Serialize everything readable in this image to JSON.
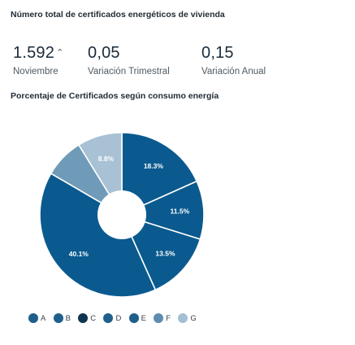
{
  "header": {
    "title": "Número total de certificados energéticos de vivienda"
  },
  "kpis": [
    {
      "value": "1.592",
      "arrow": "⌃",
      "label": "Noviembre"
    },
    {
      "value": "0,05",
      "label": "Variación Trimestral"
    },
    {
      "value": "0,15",
      "label": "Variación Anual"
    }
  ],
  "section": {
    "title": "Porcentaje de Certificados según consumo energía"
  },
  "chart_data": {
    "type": "pie",
    "donut": true,
    "title": "",
    "slices": [
      {
        "name": "A",
        "value": 18.3,
        "label": "18.3%",
        "color": "#0a5a8f"
      },
      {
        "name": "B",
        "value": 11.5,
        "label": "11.5%",
        "color": "#0a5a8f"
      },
      {
        "name": "C",
        "value": 13.5,
        "label": "13.5%",
        "color": "#0a5a8f"
      },
      {
        "name": "D",
        "value": 40.1,
        "label": "40.1%",
        "color": "#0a5a8f"
      },
      {
        "name": "E",
        "value": 7.8,
        "label": "",
        "color": "#6f9ab8"
      },
      {
        "name": "F",
        "value": 8.8,
        "label": "8.8%",
        "color": "#a9c1d4"
      }
    ],
    "legend": {
      "placement": "bottom",
      "items": [
        {
          "label": "A",
          "color": "#1f5f8b"
        },
        {
          "label": "B",
          "color": "#1f5f8b"
        },
        {
          "label": "C",
          "color": "#0f3550"
        },
        {
          "label": "D",
          "color": "#1f5f8b"
        },
        {
          "label": "E",
          "color": "#1f5f8b"
        },
        {
          "label": "F",
          "color": "#5c8db0"
        },
        {
          "label": "G",
          "color": "#a3bfd4"
        }
      ]
    }
  }
}
